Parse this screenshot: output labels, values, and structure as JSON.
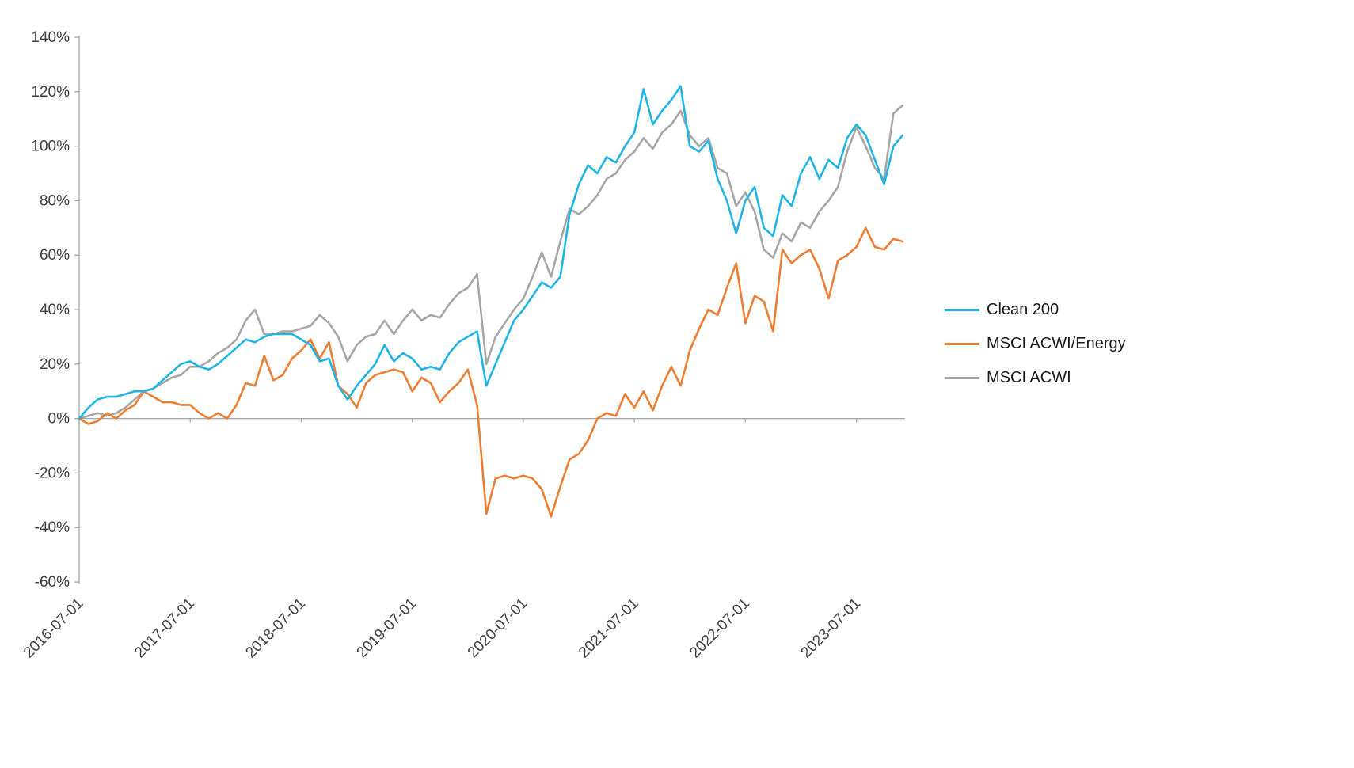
{
  "chart_data": {
    "type": "line",
    "title": "",
    "xlabel": "",
    "ylabel": "",
    "ylim": [
      -60,
      140
    ],
    "grid": false,
    "zero_line": true,
    "legend_position": "right",
    "y_tick_labels": [
      "-60%",
      "-40%",
      "-20%",
      "0%",
      "20%",
      "40%",
      "60%",
      "80%",
      "100%",
      "120%",
      "140%"
    ],
    "x_tick_labels": [
      "2016-07-01",
      "2017-07-01",
      "2018-07-01",
      "2019-07-01",
      "2020-07-01",
      "2021-07-01",
      "2022-07-01",
      "2023-07-01"
    ],
    "x": [
      "2016-07",
      "2016-08",
      "2016-09",
      "2016-10",
      "2016-11",
      "2016-12",
      "2017-01",
      "2017-02",
      "2017-03",
      "2017-04",
      "2017-05",
      "2017-06",
      "2017-07",
      "2017-08",
      "2017-09",
      "2017-10",
      "2017-11",
      "2017-12",
      "2018-01",
      "2018-02",
      "2018-03",
      "2018-04",
      "2018-05",
      "2018-06",
      "2018-07",
      "2018-08",
      "2018-09",
      "2018-10",
      "2018-11",
      "2018-12",
      "2019-01",
      "2019-02",
      "2019-03",
      "2019-04",
      "2019-05",
      "2019-06",
      "2019-07",
      "2019-08",
      "2019-09",
      "2019-10",
      "2019-11",
      "2019-12",
      "2020-01",
      "2020-02",
      "2020-03",
      "2020-04",
      "2020-05",
      "2020-06",
      "2020-07",
      "2020-08",
      "2020-09",
      "2020-10",
      "2020-11",
      "2020-12",
      "2021-01",
      "2021-02",
      "2021-03",
      "2021-04",
      "2021-05",
      "2021-06",
      "2021-07",
      "2021-08",
      "2021-09",
      "2021-10",
      "2021-11",
      "2021-12",
      "2022-01",
      "2022-02",
      "2022-03",
      "2022-04",
      "2022-05",
      "2022-06",
      "2022-07",
      "2022-08",
      "2022-09",
      "2022-10",
      "2022-11",
      "2022-12",
      "2023-01",
      "2023-02",
      "2023-03",
      "2023-04",
      "2023-05",
      "2023-06",
      "2023-07",
      "2023-08",
      "2023-09",
      "2023-10",
      "2023-11",
      "2023-12"
    ],
    "series": [
      {
        "name": "Clean 200",
        "color": "#1FB4E5",
        "values": [
          0,
          4,
          7,
          8,
          8,
          9,
          10,
          10,
          11,
          14,
          17,
          20,
          21,
          19,
          18,
          20,
          23,
          26,
          29,
          28,
          30,
          31,
          31,
          31,
          29,
          27,
          21,
          22,
          12,
          7,
          12,
          16,
          20,
          27,
          21,
          24,
          22,
          18,
          19,
          18,
          24,
          28,
          30,
          32,
          12,
          20,
          28,
          36,
          40,
          45,
          50,
          48,
          52,
          75,
          86,
          93,
          90,
          96,
          94,
          100,
          105,
          121,
          108,
          113,
          117,
          122,
          100,
          98,
          102,
          88,
          80,
          68,
          80,
          85,
          70,
          67,
          82,
          78,
          90,
          96,
          88,
          95,
          92,
          103,
          108,
          104,
          95,
          86,
          100,
          104
        ]
      },
      {
        "name": "MSCI ACWI/Energy",
        "color": "#ED7D31",
        "values": [
          0,
          -2,
          -1,
          2,
          0,
          3,
          5,
          10,
          8,
          6,
          6,
          5,
          5,
          2,
          0,
          2,
          0,
          5,
          13,
          12,
          23,
          14,
          16,
          22,
          25,
          29,
          22,
          28,
          12,
          9,
          4,
          13,
          16,
          17,
          18,
          17,
          10,
          15,
          13,
          6,
          10,
          13,
          18,
          5,
          -35,
          -22,
          -21,
          -22,
          -21,
          -22,
          -26,
          -36,
          -25,
          -15,
          -13,
          -8,
          0,
          2,
          1,
          9,
          4,
          10,
          3,
          12,
          19,
          12,
          25,
          33,
          40,
          38,
          48,
          57,
          35,
          45,
          43,
          32,
          62,
          57,
          60,
          62,
          55,
          44,
          58,
          60,
          63,
          70,
          63,
          62,
          66,
          65
        ]
      },
      {
        "name": "MSCI ACWI",
        "color": "#A6A6A6",
        "values": [
          0,
          1,
          2,
          1,
          2,
          4,
          7,
          10,
          11,
          13,
          15,
          16,
          19,
          19,
          21,
          24,
          26,
          29,
          36,
          40,
          31,
          31,
          32,
          32,
          33,
          34,
          38,
          35,
          30,
          21,
          27,
          30,
          31,
          36,
          31,
          36,
          40,
          36,
          38,
          37,
          42,
          46,
          48,
          53,
          20,
          30,
          35,
          40,
          44,
          52,
          61,
          52,
          65,
          77,
          75,
          78,
          82,
          88,
          90,
          95,
          98,
          103,
          99,
          105,
          108,
          113,
          104,
          100,
          103,
          92,
          90,
          78,
          83,
          76,
          62,
          59,
          68,
          65,
          72,
          70,
          76,
          80,
          85,
          98,
          107,
          100,
          92,
          88,
          112,
          115
        ]
      }
    ]
  }
}
